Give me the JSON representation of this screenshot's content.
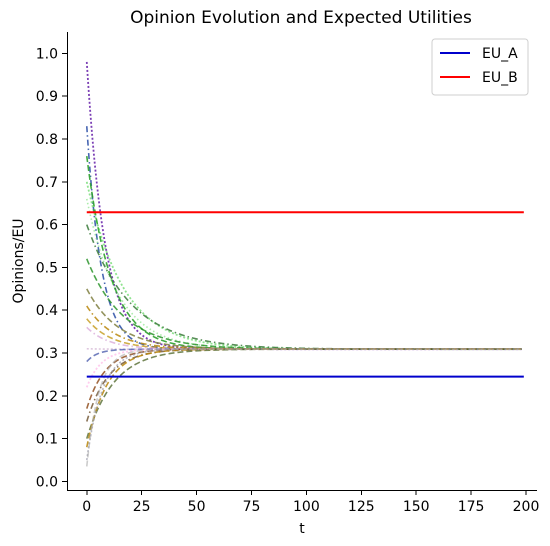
{
  "chart_data": {
    "type": "line",
    "title": "Opinion Evolution and Expected Utilities",
    "xlabel": "t",
    "ylabel": "Opinions/EU",
    "xlim": [
      -9,
      205
    ],
    "ylim": [
      -0.02,
      1.05
    ],
    "grid": false,
    "legend_position": "top-right",
    "x_ticks": [
      0,
      25,
      50,
      75,
      100,
      125,
      150,
      175,
      200
    ],
    "x_tick_labels": [
      "0",
      "25",
      "50",
      "75",
      "100",
      "125",
      "150",
      "175",
      "200"
    ],
    "y_ticks": [
      0.0,
      0.1,
      0.2,
      0.3,
      0.4,
      0.5,
      0.6,
      0.7,
      0.8,
      0.9,
      1.0
    ],
    "y_tick_labels": [
      "0.0",
      "0.1",
      "0.2",
      "0.3",
      "0.4",
      "0.5",
      "0.6",
      "0.7",
      "0.8",
      "0.9",
      "1.0"
    ],
    "legend": [
      {
        "name": "EU_A",
        "color": "#0000cc"
      },
      {
        "name": "EU_B",
        "color": "#ff0000"
      }
    ],
    "reference_lines": [
      {
        "name": "EU_A",
        "y": 0.245,
        "x": [
          0,
          199
        ],
        "color": "#0000cc"
      },
      {
        "name": "EU_B",
        "y": 0.629,
        "x": [
          0,
          199
        ],
        "color": "#ff0000"
      }
    ],
    "opinion_series": [
      {
        "start": 0.98,
        "end": 0.309,
        "rate": 0.12,
        "color": "#7b3fb5",
        "dash": "2,2",
        "opacity": 1.0,
        "width": 1.8
      },
      {
        "start": 0.83,
        "end": 0.309,
        "rate": 0.15,
        "color": "#3355aa",
        "dash": "6,3,1.5,3",
        "opacity": 0.9,
        "width": 1.6
      },
      {
        "start": 0.76,
        "end": 0.309,
        "rate": 0.09,
        "color": "#2ca02c",
        "dash": "6,3",
        "opacity": 0.9,
        "width": 1.6
      },
      {
        "start": 0.7,
        "end": 0.309,
        "rate": 0.06,
        "color": "#33cc33",
        "dash": "2,2",
        "opacity": 0.55,
        "width": 1.8
      },
      {
        "start": 0.66,
        "end": 0.309,
        "rate": 0.07,
        "color": "#66dd66",
        "dash": "1.5,2.5",
        "opacity": 0.55,
        "width": 1.6
      },
      {
        "start": 0.6,
        "end": 0.309,
        "rate": 0.05,
        "color": "#3a7a3a",
        "dash": "6,3,1.5,3",
        "opacity": 0.85,
        "width": 1.6
      },
      {
        "start": 0.52,
        "end": 0.309,
        "rate": 0.06,
        "color": "#1f8f1f",
        "dash": "6,3",
        "opacity": 0.8,
        "width": 1.6
      },
      {
        "start": 0.45,
        "end": 0.309,
        "rate": 0.07,
        "color": "#7f7f3f",
        "dash": "6,3",
        "opacity": 0.85,
        "width": 1.6
      },
      {
        "start": 0.41,
        "end": 0.309,
        "rate": 0.08,
        "color": "#b8860b",
        "dash": "6,3,1.5,3",
        "opacity": 0.85,
        "width": 1.6
      },
      {
        "start": 0.38,
        "end": 0.309,
        "rate": 0.09,
        "color": "#c49a1a",
        "dash": "6,3",
        "opacity": 0.8,
        "width": 1.6
      },
      {
        "start": 0.36,
        "end": 0.309,
        "rate": 0.1,
        "color": "#d4a0d4",
        "dash": "6,3,1.5,3",
        "opacity": 0.7,
        "width": 1.6
      },
      {
        "start": 0.31,
        "end": 0.309,
        "rate": 0.15,
        "color": "#c8a2c8",
        "dash": "2,2",
        "opacity": 0.6,
        "width": 1.6
      },
      {
        "start": 0.28,
        "end": 0.309,
        "rate": 0.2,
        "color": "#4455aa",
        "dash": "6,3",
        "opacity": 0.75,
        "width": 1.6
      },
      {
        "start": 0.22,
        "end": 0.309,
        "rate": 0.15,
        "color": "#ff99dd",
        "dash": "2,2",
        "opacity": 0.5,
        "width": 1.8
      },
      {
        "start": 0.17,
        "end": 0.309,
        "rate": 0.12,
        "color": "#8b4513",
        "dash": "6,3",
        "opacity": 0.8,
        "width": 1.6
      },
      {
        "start": 0.14,
        "end": 0.309,
        "rate": 0.1,
        "color": "#6b4f2a",
        "dash": "6,3,1.5,3",
        "opacity": 0.8,
        "width": 1.6
      },
      {
        "start": 0.1,
        "end": 0.309,
        "rate": 0.08,
        "color": "#556b2f",
        "dash": "6,3",
        "opacity": 0.8,
        "width": 1.6
      },
      {
        "start": 0.08,
        "end": 0.309,
        "rate": 0.11,
        "color": "#b8860b",
        "dash": "6,3",
        "opacity": 0.85,
        "width": 1.6
      },
      {
        "start": 0.05,
        "end": 0.309,
        "rate": 0.14,
        "color": "#9a9aaa",
        "dash": "2,2",
        "opacity": 0.7,
        "width": 1.6
      },
      {
        "start": 0.035,
        "end": 0.309,
        "rate": 0.18,
        "color": "#aaaaaa",
        "dash": "6,3",
        "opacity": 0.6,
        "width": 1.6
      }
    ]
  }
}
